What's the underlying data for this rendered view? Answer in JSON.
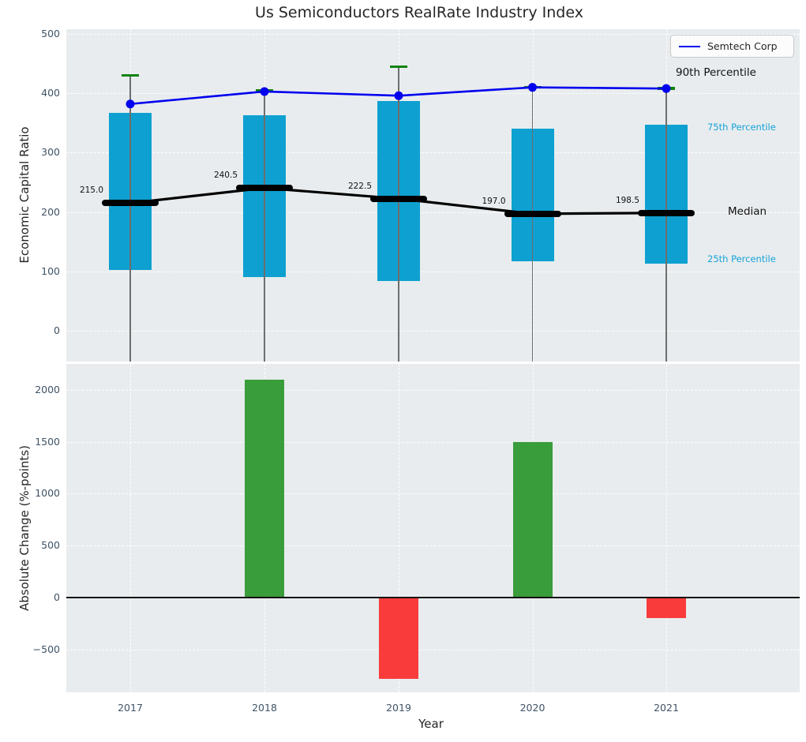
{
  "title": "Us Semiconductors RealRate Industry Index",
  "legend": {
    "label": "Semtech Corp"
  },
  "top_panel": {
    "ylabel": "Economic Capital Ratio",
    "ytick_labels": [
      "500",
      "400",
      "300",
      "200",
      "100",
      "0"
    ],
    "ytick_values": [
      500,
      400,
      300,
      200,
      100,
      0
    ],
    "annotations": {
      "p90": "90th Percentile",
      "p75": "75th Percentile",
      "median": "Median",
      "p25": "25th Percentile"
    }
  },
  "bottom_panel": {
    "ylabel": "Absolute Change (%-points)",
    "xlabel": "Year",
    "ytick_labels": [
      "2000",
      "1500",
      "1000",
      "500",
      "0",
      "−500"
    ],
    "ytick_values": [
      2000,
      1500,
      1000,
      500,
      0,
      -500
    ]
  },
  "chart_data": [
    {
      "type": "boxplot",
      "panel": "top",
      "title": "Us Semiconductors RealRate Industry Index",
      "categories": [
        "2017",
        "2018",
        "2019",
        "2020",
        "2021"
      ],
      "ylabel": "Economic Capital Ratio",
      "ylim": [
        -52,
        508
      ],
      "yticks": [
        0,
        100,
        200,
        300,
        400,
        500
      ],
      "grid": true,
      "legend_position": "upper right",
      "series": [
        {
          "name": "90th Percentile",
          "role": "whisker-cap",
          "color": "#0e830e",
          "values": [
            430,
            405,
            445,
            410,
            408
          ]
        },
        {
          "name": "75th Percentile",
          "role": "box-top",
          "color": "#0ea0d1",
          "values": [
            367,
            363,
            387,
            340,
            347
          ]
        },
        {
          "name": "Median",
          "role": "median",
          "color": "#000000",
          "values": [
            215.0,
            240.5,
            222.5,
            197.0,
            198.5
          ],
          "labels": [
            "215.0",
            "240.5",
            "222.5",
            "197.0",
            "198.5"
          ]
        },
        {
          "name": "25th Percentile",
          "role": "box-bottom",
          "color": "#0ea0d1",
          "values": [
            103,
            90,
            84,
            117,
            113
          ]
        },
        {
          "name": "Semtech Corp",
          "role": "line",
          "color": "#0000ee",
          "values": [
            382,
            403,
            396,
            410,
            408
          ]
        }
      ]
    },
    {
      "type": "bar",
      "panel": "bottom",
      "categories": [
        "2017",
        "2018",
        "2019",
        "2020",
        "2021"
      ],
      "values": [
        null,
        2100,
        -780,
        1500,
        -200
      ],
      "xlabel": "Year",
      "ylabel": "Absolute Change (%-points)",
      "ylim": [
        -912,
        2260
      ],
      "yticks": [
        -500,
        0,
        500,
        1000,
        1500,
        2000
      ],
      "positive_color": "#3a9d3b",
      "negative_color": "#f93b3b",
      "grid": true
    }
  ]
}
